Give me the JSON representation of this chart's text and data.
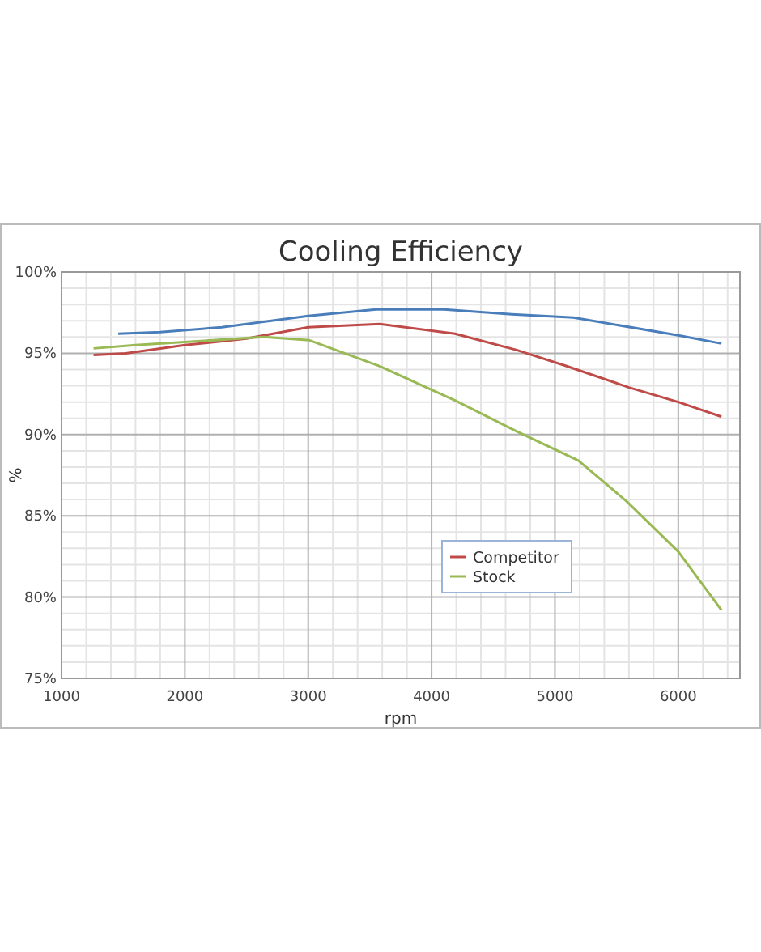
{
  "chart_data": {
    "type": "line",
    "title": "Cooling Efficiency",
    "xlabel": "rpm",
    "ylabel": "%",
    "xlim": [
      1000,
      6500
    ],
    "xticks": [
      1000,
      2000,
      3000,
      4000,
      5000,
      6000
    ],
    "ylim": [
      75,
      100
    ],
    "yticks": [
      {
        "value": 75,
        "label": "75%"
      },
      {
        "value": 80,
        "label": "80%"
      },
      {
        "value": 85,
        "label": "85%"
      },
      {
        "value": 90,
        "label": "90%"
      },
      {
        "value": 95,
        "label": "95%"
      },
      {
        "value": 100,
        "label": "100%"
      }
    ],
    "grid": true,
    "legend": "bottom right",
    "marker": "none",
    "line_style": "solid",
    "series": [
      {
        "color": "#4a7ebb",
        "x": [
          1460,
          1800,
          2300,
          3000,
          3550,
          4100,
          4650,
          5150,
          6000,
          6350
        ],
        "values": [
          96.2,
          96.3,
          96.6,
          97.3,
          97.7,
          97.7,
          97.4,
          97.2,
          96.1,
          95.6
        ]
      },
      {
        "name": "Competitor",
        "color": "#be4b48",
        "x": [
          1260,
          1520,
          2000,
          2500,
          3000,
          3580,
          4190,
          4690,
          5100,
          5600,
          6000,
          6350
        ],
        "values": [
          94.9,
          95.0,
          95.5,
          95.9,
          96.6,
          96.8,
          96.2,
          95.2,
          94.2,
          92.9,
          92.0,
          91.1
        ]
      },
      {
        "name": "Stock",
        "color": "#98b954",
        "x": [
          1260,
          1600,
          2640,
          3010,
          3580,
          4190,
          4690,
          5190,
          5580,
          6000,
          6350
        ],
        "values": [
          95.3,
          95.5,
          96.0,
          95.8,
          94.2,
          92.1,
          90.2,
          88.4,
          85.9,
          82.8,
          79.2
        ]
      }
    ]
  }
}
